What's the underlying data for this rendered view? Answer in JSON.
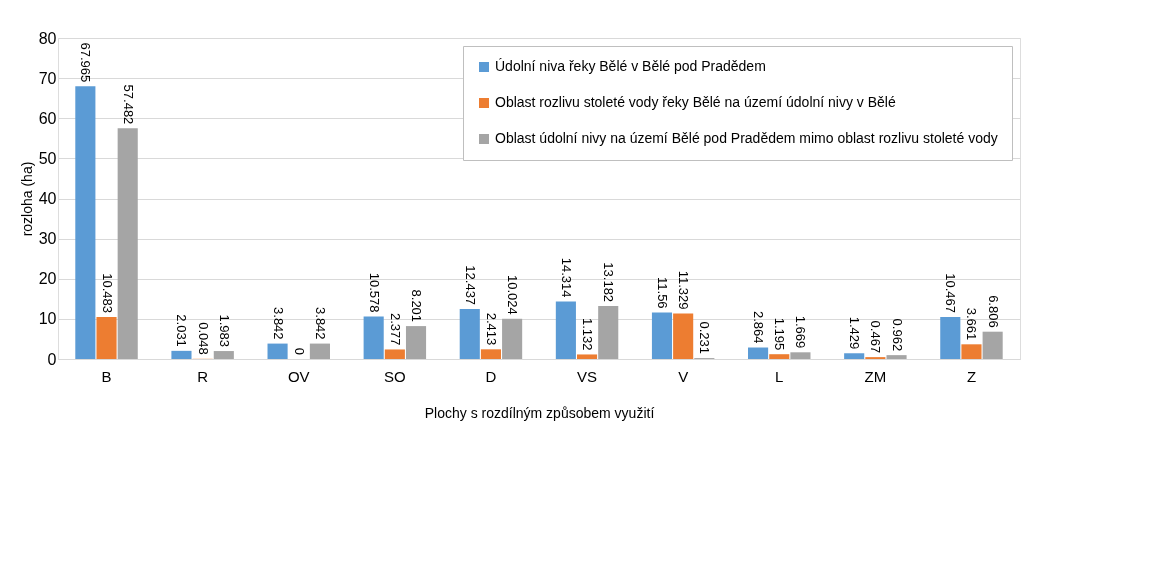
{
  "chart_data": {
    "type": "bar",
    "xlabel": "Plochy s rozdílným způsobem využití",
    "ylabel": "rozloha (ha)",
    "categories": [
      "B",
      "R",
      "OV",
      "SO",
      "D",
      "VS",
      "V",
      "L",
      "ZM",
      "Z"
    ],
    "series": [
      {
        "name": "Údolní niva řeky Bělé v Bělé pod Pradědem",
        "color": "#5b9bd5",
        "values": [
          67.965,
          2.031,
          3.842,
          10.578,
          12.437,
          14.314,
          11.56,
          2.864,
          1.429,
          10.467
        ]
      },
      {
        "name": "Oblast rozlivu stoleté vody řeky Bělé na území údolní nivy v Bělé",
        "color": "#ed7d31",
        "values": [
          10.483,
          0.048,
          0,
          2.377,
          2.413,
          1.132,
          11.329,
          1.195,
          0.467,
          3.661
        ]
      },
      {
        "name": "Oblast údolní nivy na území Bělé pod Pradědem mimo oblast rozlivu stoleté vody",
        "color": "#a5a5a5",
        "values": [
          57.482,
          1.983,
          3.842,
          8.201,
          10.024,
          13.182,
          0.231,
          1.669,
          0.962,
          6.806
        ]
      }
    ],
    "ylim": [
      0,
      80
    ],
    "yticks": [
      0,
      10,
      20,
      30,
      40,
      50,
      60,
      70,
      80
    ],
    "grid": "y",
    "legend": "top right",
    "data_labels": true
  }
}
